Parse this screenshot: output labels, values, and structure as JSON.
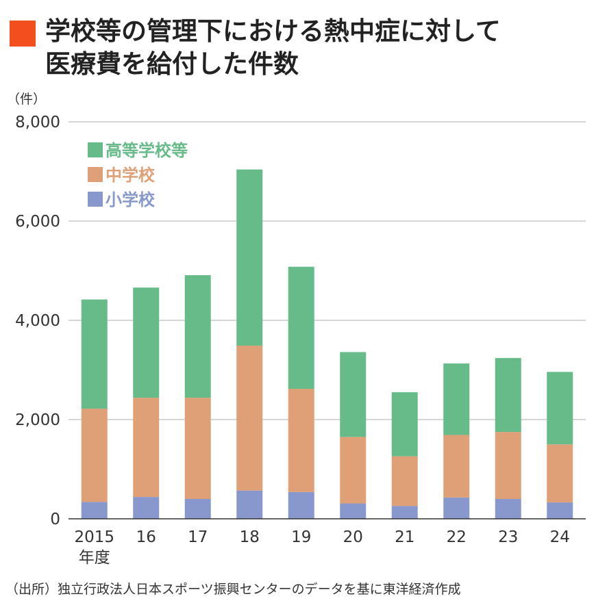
{
  "title_lines": [
    "学校等の管理下における熱中症に対して",
    "医療費を給付した件数"
  ],
  "unit_label": "（件）",
  "source": "（出所）独立行政法人日本スポーツ振興センターのデータを基に東洋経済作成",
  "colors": {
    "title_marker": "#f24e1e",
    "high_school": "#66bb89",
    "junior_high": "#e0a077",
    "elementary": "#8898cc",
    "grid": "#bdbdbd",
    "axis": "#333333"
  },
  "chart_data": {
    "type": "bar",
    "stacked": true,
    "categories": [
      "2015",
      "16",
      "17",
      "18",
      "19",
      "20",
      "21",
      "22",
      "23",
      "24"
    ],
    "x_suffix_first": "年度",
    "ylim": [
      0,
      8000
    ],
    "yticks": [
      0,
      2000,
      4000,
      6000,
      8000
    ],
    "ytick_labels": [
      "0",
      "2,000",
      "4,000",
      "6,000",
      "8,000"
    ],
    "grid": true,
    "legend_position": "top-left",
    "series": [
      {
        "name": "小学校",
        "color": "#8898cc",
        "values": [
          340,
          440,
          400,
          570,
          540,
          310,
          260,
          430,
          400,
          330
        ]
      },
      {
        "name": "中学校",
        "color": "#e0a077",
        "values": [
          1880,
          2000,
          2040,
          2920,
          2080,
          1340,
          1000,
          1260,
          1350,
          1170
        ]
      },
      {
        "name": "高等学校等",
        "color": "#66bb89",
        "values": [
          2200,
          2220,
          2470,
          3550,
          2460,
          1710,
          1290,
          1440,
          1490,
          1460
        ]
      }
    ],
    "legend_order": [
      "高等学校等",
      "中学校",
      "小学校"
    ]
  }
}
